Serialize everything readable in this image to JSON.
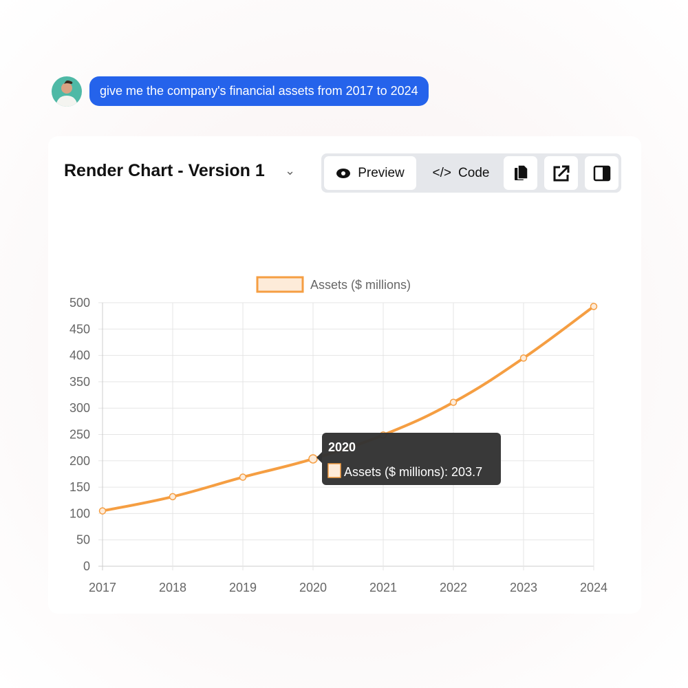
{
  "chat": {
    "user_message": "give me the company's financial assets from 2017 to 2024"
  },
  "header": {
    "title": "Render Chart - Version 1",
    "preview_label": "Preview",
    "code_label": "Code",
    "icons": [
      "eye-icon",
      "code-icon",
      "copy-icon",
      "external-link-icon",
      "sidebar-panel-icon"
    ]
  },
  "colors": {
    "series": "#f59e42",
    "series_fill": "#fdebd9",
    "bubble": "#2563eb",
    "tooltip_bg": "#333333"
  },
  "chart_data": {
    "type": "line",
    "categories": [
      "2017",
      "2018",
      "2019",
      "2020",
      "2021",
      "2022",
      "2023",
      "2024"
    ],
    "series": [
      {
        "name": "Assets ($ millions)",
        "values": [
          105,
          132,
          169,
          203.7,
          249,
          311,
          395,
          493
        ]
      }
    ],
    "ylim": [
      0,
      500
    ],
    "yticks": [
      0,
      50,
      100,
      150,
      200,
      250,
      300,
      350,
      400,
      450,
      500
    ],
    "grid": true,
    "legend": "top",
    "tooltip": {
      "title": "2020",
      "label": "Assets ($ millions): 203.7"
    }
  }
}
